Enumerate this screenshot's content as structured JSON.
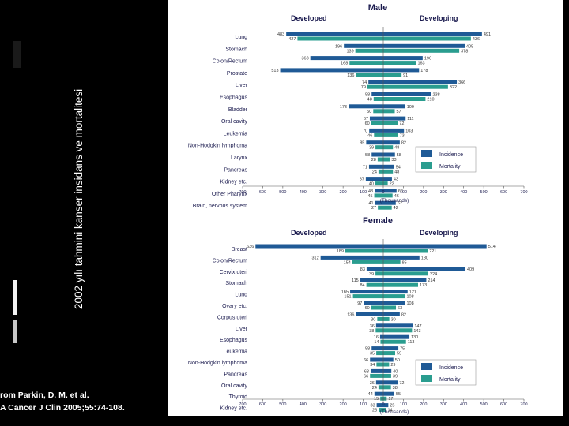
{
  "slide": {
    "vertical_title": "2002 yılı tahmini kanser insidans ve mortalitesi",
    "citation_line1": "rom Parkin, D. M. et al.",
    "citation_line2": "A Cancer J Clin 2005;55:74-108."
  },
  "colors": {
    "incidence": "#1f5a96",
    "mortality": "#2a9d8f"
  },
  "chart_data": [
    {
      "type": "bar",
      "orientation": "horizontal-butterfly",
      "title": "Male",
      "left_group": "Developed",
      "right_group": "Developing",
      "xlabel": "(Thousands)",
      "xlim": [
        -700,
        700
      ],
      "xticks": [
        700,
        600,
        500,
        400,
        300,
        200,
        100,
        0,
        100,
        200,
        300,
        400,
        500,
        600,
        700
      ],
      "legend": [
        "Incidence",
        "Mortality"
      ],
      "legend_position": "right",
      "categories": [
        "Lung",
        "Stomach",
        "Colon/Rectum",
        "Prostate",
        "Liver",
        "Esophagus",
        "Bladder",
        "Oral cavity",
        "Leukemia",
        "Non-Hodgkin lymphoma",
        "Larynx",
        "Pancreas",
        "Kidney etc.",
        "Other Pharynx",
        "Brain, nervous system"
      ],
      "series": [
        {
          "name": "Developed Incidence",
          "values": [
            483,
            196,
            363,
            513,
            74,
            58,
            173,
            67,
            70,
            85,
            58,
            71,
            87,
            43,
            41
          ]
        },
        {
          "name": "Developed Mortality",
          "values": [
            427,
            139,
            168,
            136,
            79,
            48,
            50,
            60,
            46,
            39,
            28,
            24,
            40,
            45,
            27
          ]
        },
        {
          "name": "Developing Incidence",
          "values": [
            491,
            405,
            196,
            178,
            366,
            238,
            109,
            111,
            103,
            82,
            58,
            54,
            43,
            66,
            62
          ]
        },
        {
          "name": "Developing Mortality",
          "values": [
            436,
            378,
            163,
            91,
            322,
            210,
            57,
            72,
            73,
            48,
            33,
            48,
            22,
            46,
            42
          ]
        }
      ]
    },
    {
      "type": "bar",
      "orientation": "horizontal-butterfly",
      "title": "Female",
      "left_group": "Developed",
      "right_group": "Developing",
      "xlabel": "(Thousands)",
      "xlim": [
        -700,
        700
      ],
      "xticks": [
        700,
        600,
        500,
        400,
        300,
        200,
        100,
        0,
        100,
        200,
        300,
        400,
        500,
        600,
        700
      ],
      "legend": [
        "Incidence",
        "Mortality"
      ],
      "legend_position": "right",
      "categories": [
        "Breast",
        "Colon/Rectum",
        "Cervix uteri",
        "Stomach",
        "Lung",
        "Ovary etc.",
        "Corpus uteri",
        "Liver",
        "Esophagus",
        "Leukemia",
        "Non-Hodgkin lymphoma",
        "Pancreas",
        "Oral cavity",
        "Thyroid",
        "Kidney etc."
      ],
      "series": [
        {
          "name": "Developed Incidence",
          "values": [
            636,
            312,
            83,
            115,
            165,
            97,
            136,
            36,
            16,
            58,
            66,
            63,
            36,
            44,
            33
          ]
        },
        {
          "name": "Developed Mortality",
          "values": [
            189,
            154,
            39,
            84,
            151,
            60,
            30,
            38,
            14,
            35,
            34,
            66,
            24,
            15,
            23
          ]
        },
        {
          "name": "Developing Incidence",
          "values": [
            514,
            180,
            409,
            214,
            121,
            108,
            82,
            147,
            130,
            75,
            50,
            40,
            72,
            55,
            25
          ]
        },
        {
          "name": "Developing Mortality",
          "values": [
            221,
            85,
            224,
            173,
            108,
            63,
            30,
            143,
            113,
            59,
            29,
            39,
            38,
            17,
            14
          ]
        }
      ]
    }
  ]
}
